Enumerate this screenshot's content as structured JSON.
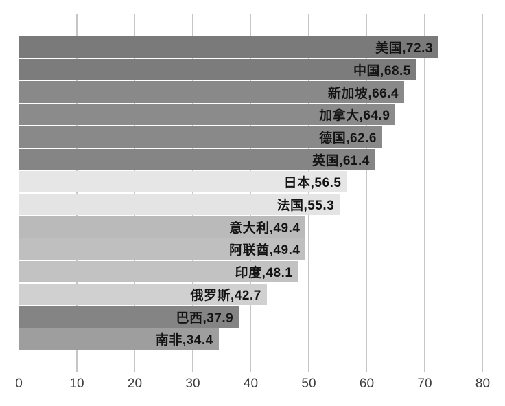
{
  "chart_data": {
    "type": "bar",
    "orientation": "horizontal",
    "title": "",
    "xlabel": "",
    "ylabel": "",
    "xlim": [
      0,
      80
    ],
    "x_ticks": [
      0,
      10,
      20,
      30,
      40,
      50,
      60,
      70,
      80
    ],
    "grid": true,
    "legend": "none",
    "background_color": "#ffffff",
    "gridline_color": "#c6c6c6",
    "label_text_color": "#141414",
    "axis_text_color": "#3c3c3c",
    "label_format": "category,value",
    "categories": [
      "美国",
      "中国",
      "新加坡",
      "加拿大",
      "德国",
      "英国",
      "日本",
      "法国",
      "意大利",
      "阿联酋",
      "印度",
      "俄罗斯",
      "巴西",
      "南非"
    ],
    "values": [
      72.3,
      68.5,
      66.4,
      64.9,
      62.6,
      61.4,
      56.5,
      55.3,
      49.4,
      49.4,
      48.1,
      42.7,
      37.9,
      34.4
    ],
    "bar_colors": [
      "#7a7a7a",
      "#7c7c7c",
      "#898989",
      "#8b8b8b",
      "#898989",
      "#858585",
      "#e6e6e6",
      "#e4e4e4",
      "#bababa",
      "#bfbfbf",
      "#c2c2c2",
      "#d0d0d0",
      "#848484",
      "#9e9e9e"
    ]
  }
}
